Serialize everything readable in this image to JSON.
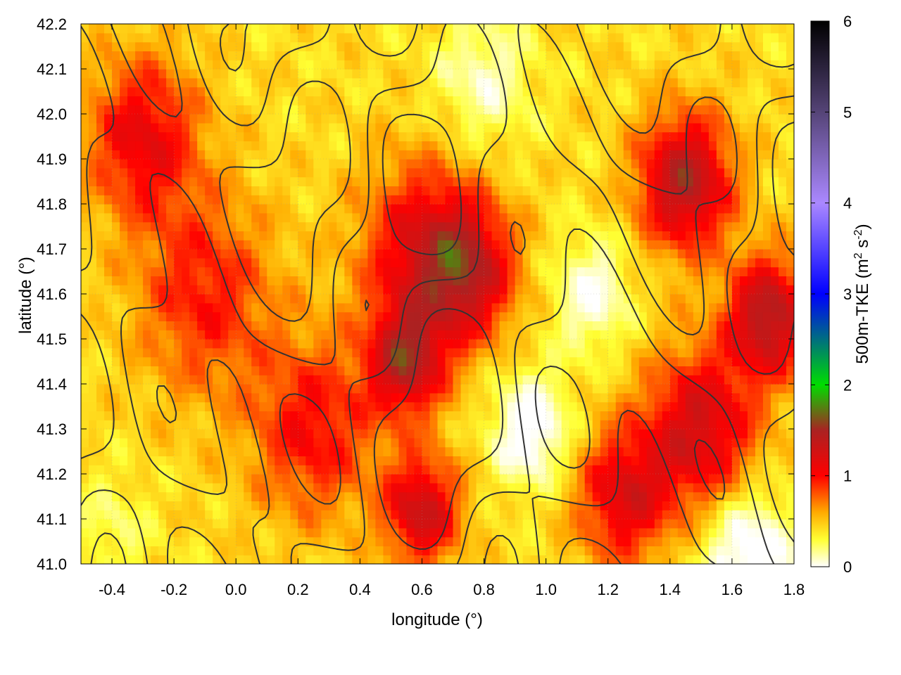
{
  "chart_data": {
    "type": "heatmap",
    "title": "",
    "xlabel": "longitude (°)",
    "ylabel": "latitude (°)",
    "colorbar_label": {
      "base": "500m-TKE (m",
      "sup1": "2",
      "mid": " s",
      "sup2": "-2",
      "end": ")"
    },
    "xlim": [
      -0.5,
      1.8
    ],
    "ylim": [
      41.0,
      42.2
    ],
    "zlim": [
      0,
      6
    ],
    "x_ticks": [
      -0.4,
      -0.2,
      0.0,
      0.2,
      0.4,
      0.6,
      0.8,
      1.0,
      1.2,
      1.4,
      1.6,
      1.8
    ],
    "x_tick_labels": [
      "-0.4",
      "-0.2",
      "0.0",
      "0.2",
      "0.4",
      "0.6",
      "0.8",
      "1.0",
      "1.2",
      "1.4",
      "1.6",
      "1.8"
    ],
    "y_ticks": [
      41.0,
      41.1,
      41.2,
      41.3,
      41.4,
      41.5,
      41.6,
      41.7,
      41.8,
      41.9,
      42.0,
      42.1,
      42.2
    ],
    "y_tick_labels": [
      "41.0",
      "41.1",
      "41.2",
      "41.3",
      "41.4",
      "41.5",
      "41.6",
      "41.7",
      "41.8",
      "41.9",
      "42.0",
      "42.1",
      "42.2"
    ],
    "colorbar_ticks": [
      0,
      1,
      2,
      3,
      4,
      5,
      6
    ],
    "colorbar_tick_labels": [
      "0",
      "1",
      "2",
      "3",
      "4",
      "5",
      "6"
    ],
    "colormap": [
      {
        "value": 0.0,
        "color": "#ffffff"
      },
      {
        "value": 0.3,
        "color": "#ffff33"
      },
      {
        "value": 0.6,
        "color": "#ffaa00"
      },
      {
        "value": 1.0,
        "color": "#ff0000"
      },
      {
        "value": 1.5,
        "color": "#aa2222"
      },
      {
        "value": 2.0,
        "color": "#00dd00"
      },
      {
        "value": 3.0,
        "color": "#0000ff"
      },
      {
        "value": 4.0,
        "color": "#aa88ff"
      },
      {
        "value": 5.0,
        "color": "#554477"
      },
      {
        "value": 6.0,
        "color": "#000000"
      }
    ],
    "grid": true,
    "contour_color": "#333333",
    "field_features": [
      {
        "lon": -0.3,
        "lat": 41.95,
        "tke": 0.7,
        "spread": 0.18
      },
      {
        "lon": -0.1,
        "lat": 41.6,
        "tke": 0.55,
        "spread": 0.22
      },
      {
        "lon": 0.55,
        "lat": 41.45,
        "tke": 0.95,
        "spread": 0.12
      },
      {
        "lon": 0.75,
        "lat": 41.65,
        "tke": 0.8,
        "spread": 0.15
      },
      {
        "lon": 0.6,
        "lat": 41.7,
        "tke": 0.7,
        "spread": 0.2
      },
      {
        "lon": 0.25,
        "lat": 41.3,
        "tke": 0.6,
        "spread": 0.2
      },
      {
        "lon": 0.6,
        "lat": 41.12,
        "tke": 0.9,
        "spread": 0.12
      },
      {
        "lon": 1.45,
        "lat": 41.85,
        "tke": 1.05,
        "spread": 0.15
      },
      {
        "lon": 1.72,
        "lat": 41.55,
        "tke": 1.05,
        "spread": 0.13
      },
      {
        "lon": 1.5,
        "lat": 41.3,
        "tke": 0.85,
        "spread": 0.18
      },
      {
        "lon": 1.25,
        "lat": 41.15,
        "tke": 0.75,
        "spread": 0.15
      },
      {
        "lon": 0.95,
        "lat": 41.3,
        "tke": -0.6,
        "spread": 0.12
      },
      {
        "lon": 1.15,
        "lat": 41.6,
        "tke": -0.45,
        "spread": 0.12
      },
      {
        "lon": 1.65,
        "lat": 41.02,
        "tke": -0.6,
        "spread": 0.15
      },
      {
        "lon": 0.8,
        "lat": 42.08,
        "tke": -0.35,
        "spread": 0.15
      },
      {
        "lon": -0.4,
        "lat": 41.08,
        "tke": -0.2,
        "spread": 0.12
      }
    ]
  }
}
